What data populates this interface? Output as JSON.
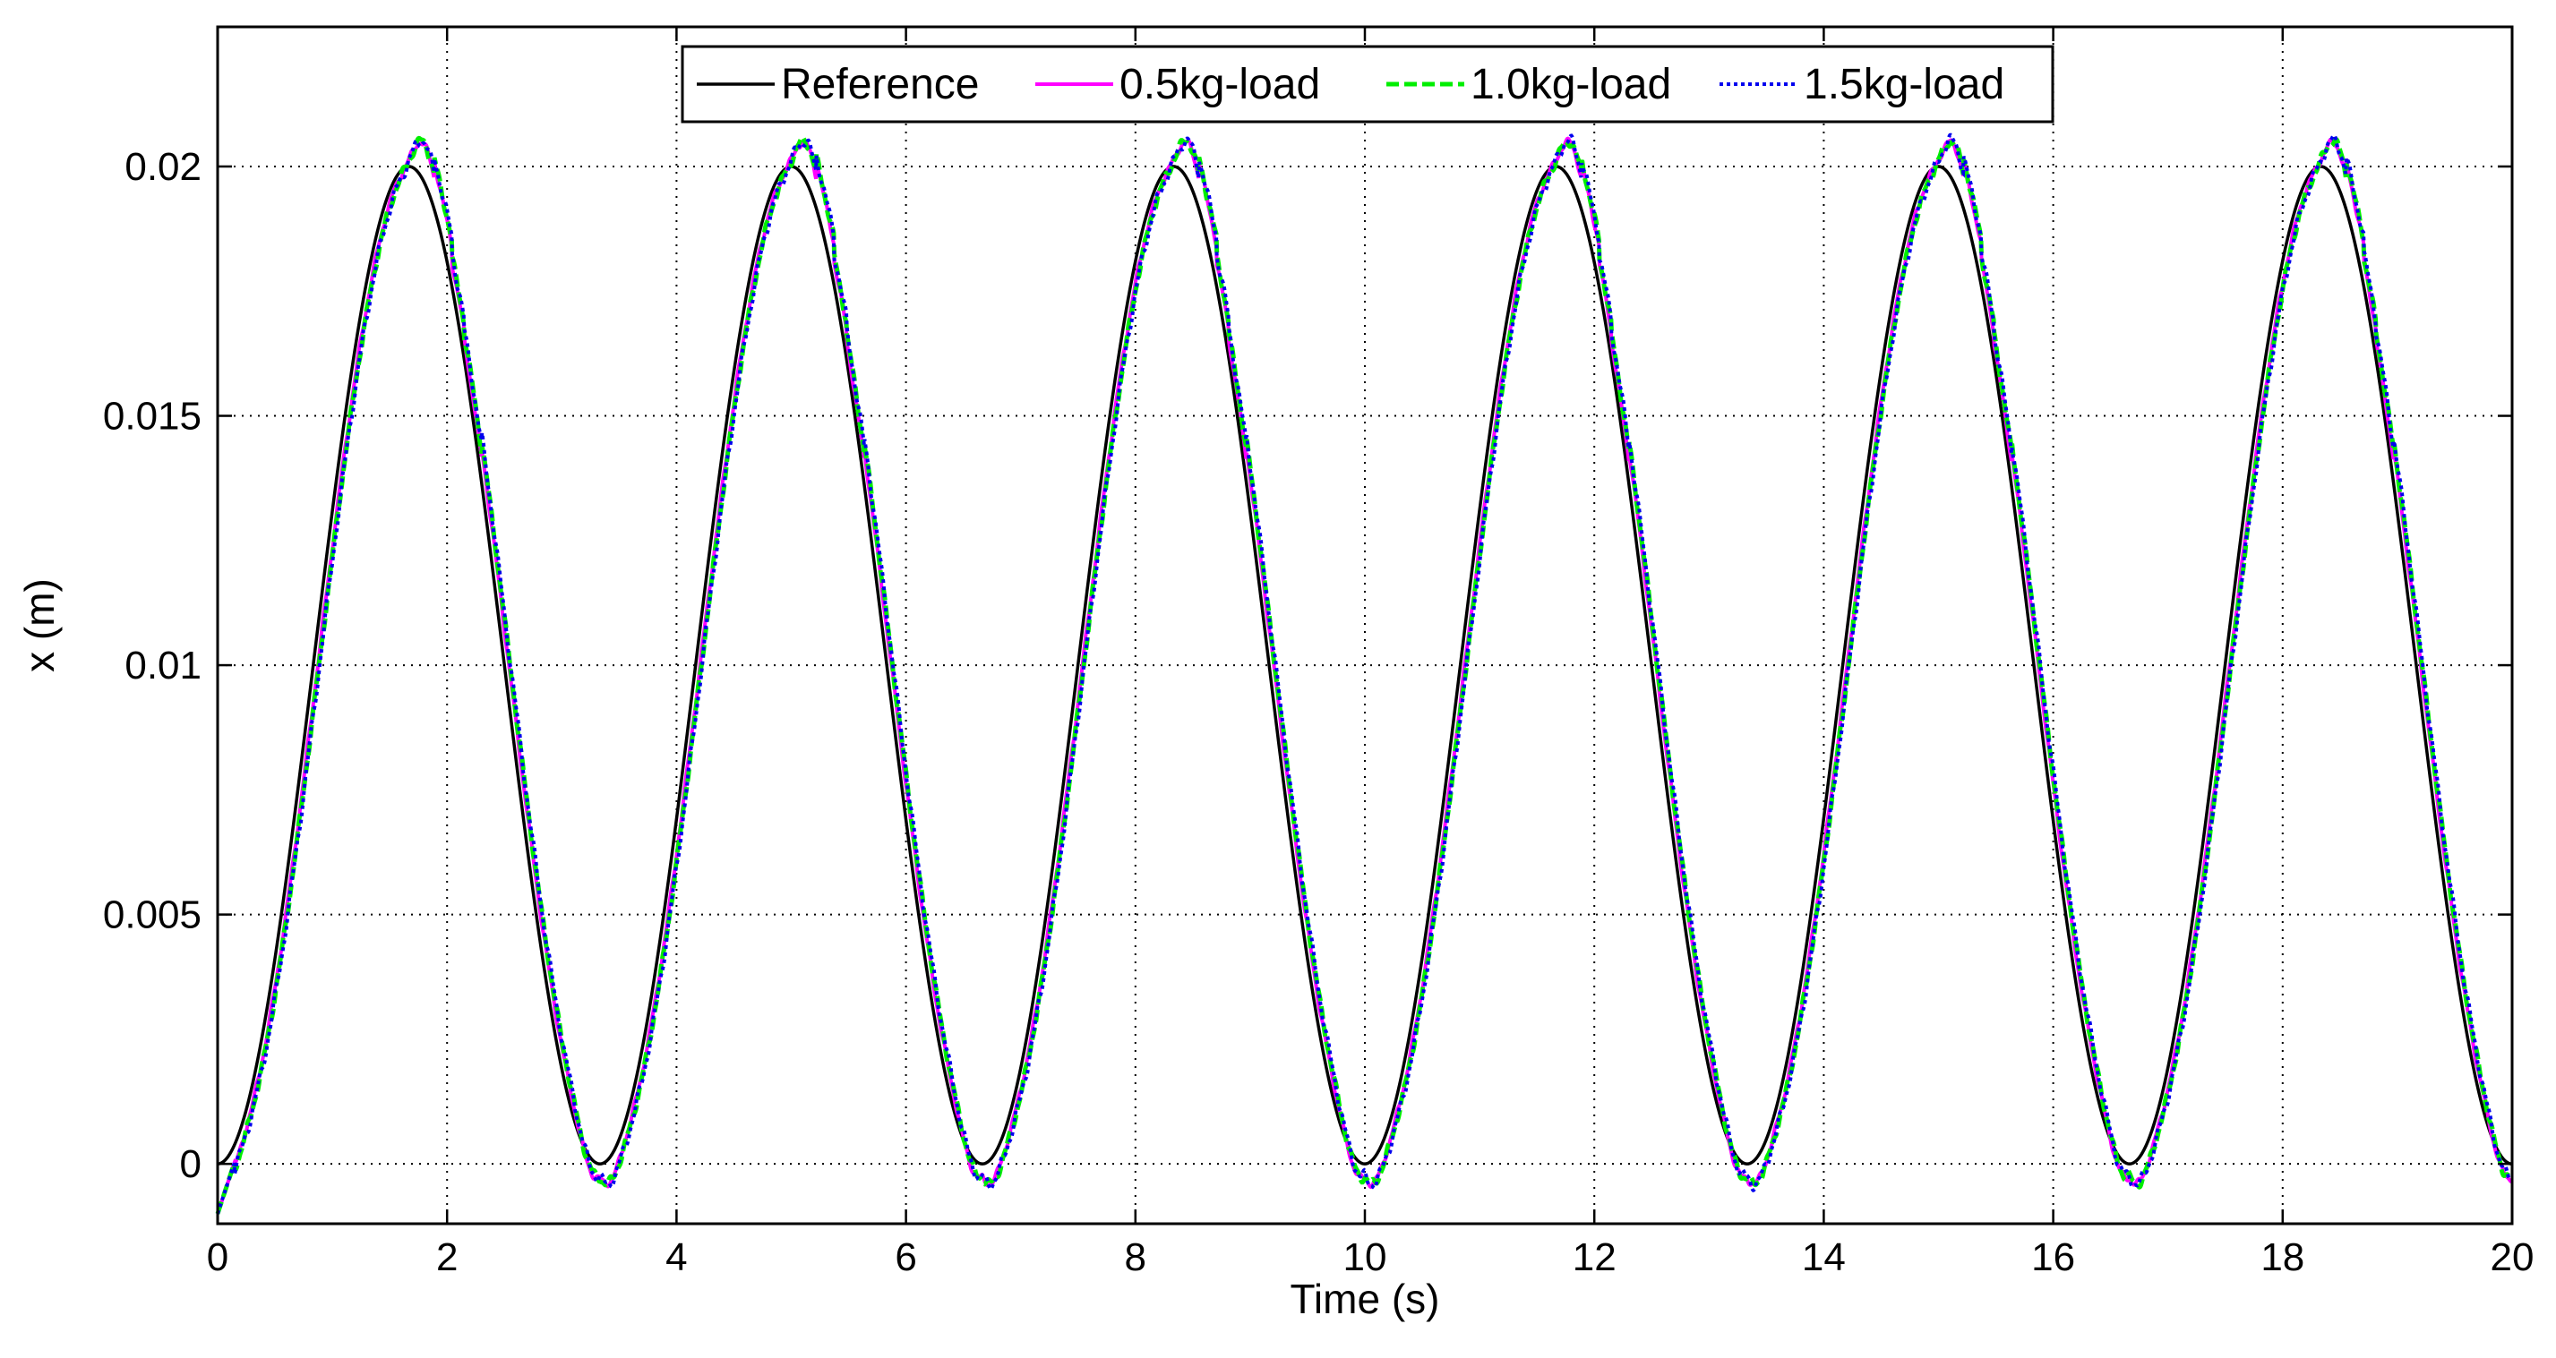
{
  "chart_data": {
    "type": "line",
    "title": "",
    "xlabel": "Time (s)",
    "ylabel": "x (m)",
    "xlim": [
      0,
      20
    ],
    "ylim": [
      -0.0012,
      0.0228
    ],
    "xticks": [
      0,
      2,
      4,
      6,
      8,
      10,
      12,
      14,
      16,
      18,
      20
    ],
    "xtick_labels": [
      "0",
      "2",
      "4",
      "6",
      "8",
      "10",
      "12",
      "14",
      "16",
      "18",
      "20"
    ],
    "yticks": [
      0,
      0.005,
      0.01,
      0.015,
      0.02
    ],
    "ytick_labels": [
      "0",
      "0.005",
      "0.01",
      "0.015",
      "0.02"
    ],
    "grid": true,
    "legend_position": "top",
    "period_s": 3.333,
    "series": [
      {
        "name": "Reference",
        "color": "#000000",
        "style": "solid",
        "description_points": [
          [
            0,
            0
          ],
          [
            1.667,
            0.02
          ],
          [
            3.333,
            0
          ],
          [
            5,
            0.02
          ],
          [
            6.667,
            0
          ],
          [
            8.333,
            0.02
          ],
          [
            10,
            0
          ],
          [
            11.667,
            0.02
          ],
          [
            13.333,
            0
          ],
          [
            15,
            0.02
          ],
          [
            16.667,
            0
          ],
          [
            18.333,
            0.02
          ],
          [
            20,
            0
          ]
        ]
      },
      {
        "name": "0.5kg-load",
        "color": "#ff00ff",
        "style": "solid"
      },
      {
        "name": "1.0kg-load",
        "color": "#00ee00",
        "style": "dashed"
      },
      {
        "name": "1.5kg-load",
        "color": "#0000ee",
        "style": "dotted"
      }
    ]
  }
}
